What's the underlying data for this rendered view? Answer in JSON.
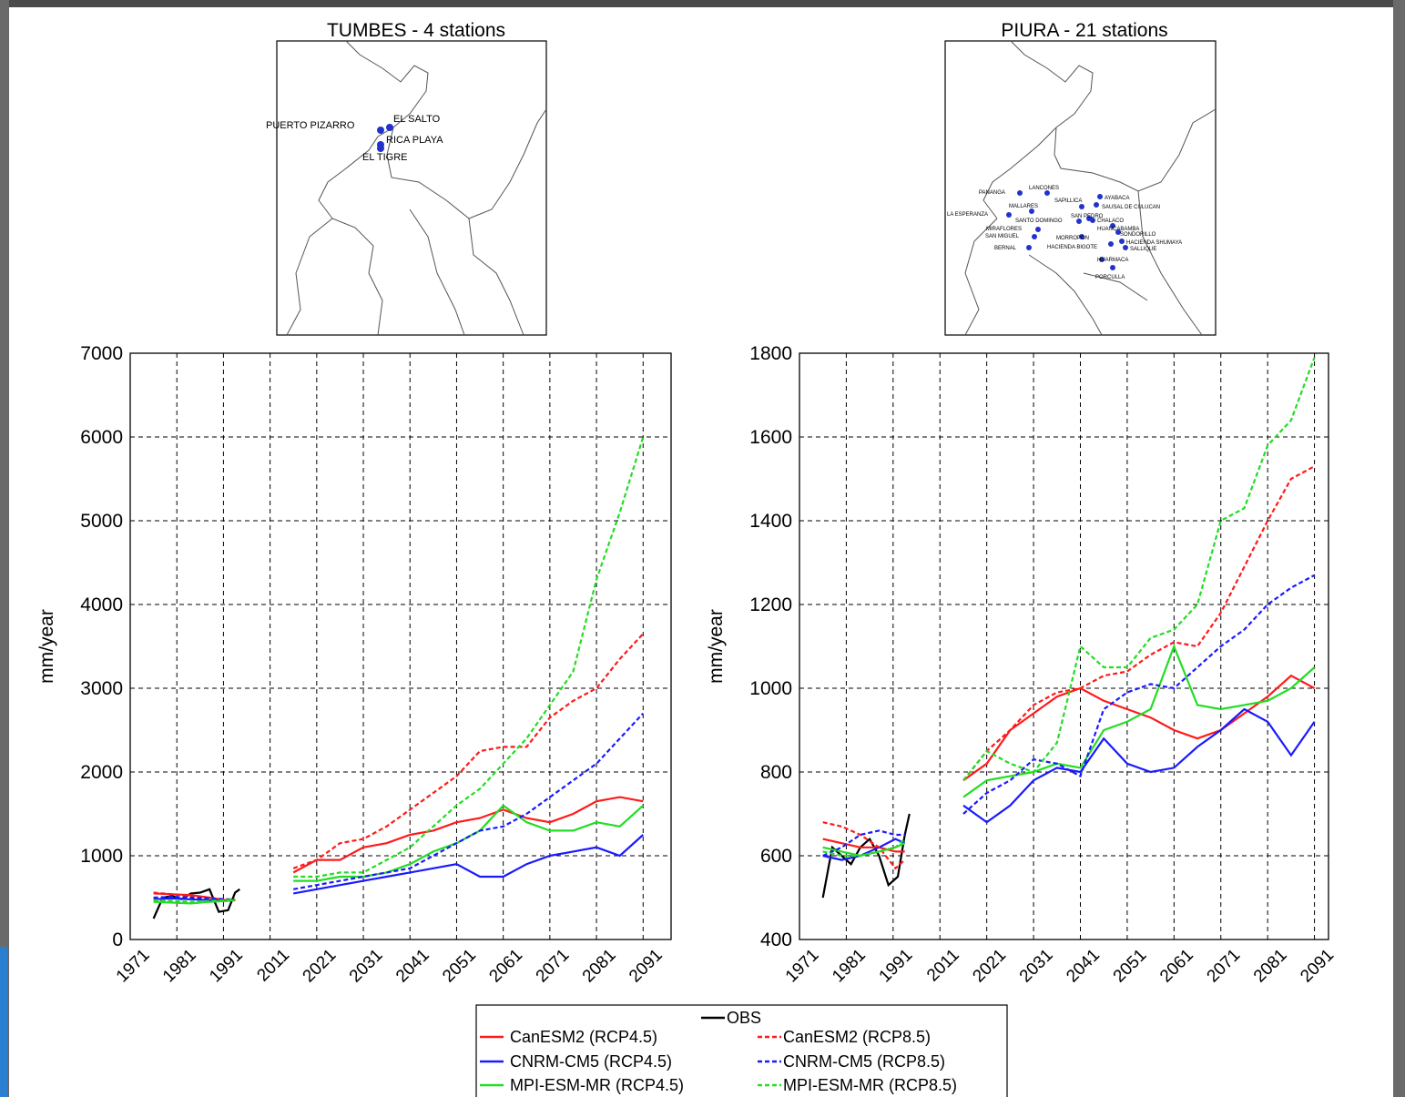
{
  "chart_data": [
    {
      "type": "line",
      "title": "TUMBES - 4 stations",
      "ylabel": "mm/year",
      "stations": [
        "PUERTO PIZARRO",
        "EL SALTO",
        "RICA PLAYA",
        "EL TIGRE"
      ],
      "xlim": [
        1971,
        2097
      ],
      "xticks": [
        1971,
        1981,
        1991,
        2011,
        2021,
        2031,
        2041,
        2051,
        2061,
        2071,
        2081,
        2091
      ],
      "ylim": [
        0,
        7000
      ],
      "yticks": [
        0,
        1000,
        2000,
        3000,
        4000,
        5000,
        6000,
        7000
      ],
      "grid": true,
      "x": [
        1976,
        1980,
        1984,
        1988,
        1992,
        1996,
        2006,
        2016,
        2021,
        2026,
        2031,
        2036,
        2041,
        2046,
        2051,
        2056,
        2061,
        2066,
        2071,
        2076,
        2081,
        2086,
        2091
      ],
      "series": [
        {
          "name": "OBS",
          "color": "#000000",
          "linestyle": "solid",
          "x": [
            1976,
            1978,
            1980,
            1982,
            1984,
            1986,
            1988,
            1990,
            1993,
            1996,
            1998
          ],
          "values": [
            250,
            500,
            520,
            480,
            550,
            560,
            600,
            330,
            350,
            560,
            600
          ]
        },
        {
          "name": "CanESM2 (RCP4.5)",
          "color": "#ff1a1a",
          "linestyle": "solid",
          "values": [
            550,
            540,
            530,
            500,
            470,
            470,
            null,
            800,
            950,
            950,
            1100,
            1150,
            1250,
            1300,
            1400,
            1450,
            1550,
            1450,
            1400,
            1500,
            1650,
            1700,
            1650
          ]
        },
        {
          "name": "CNRM-CM5 (RCP4.5)",
          "color": "#1a1aff",
          "linestyle": "solid",
          "values": [
            480,
            490,
            480,
            470,
            460,
            470,
            null,
            550,
            600,
            650,
            700,
            750,
            800,
            850,
            900,
            750,
            750,
            900,
            1000,
            1050,
            1100,
            1000,
            1250
          ]
        },
        {
          "name": "MPI-ESM-MR (RCP4.5)",
          "color": "#22dd22",
          "linestyle": "solid",
          "values": [
            450,
            440,
            430,
            450,
            460,
            470,
            null,
            700,
            700,
            750,
            750,
            800,
            900,
            1050,
            1150,
            1300,
            1600,
            1400,
            1300,
            1300,
            1400,
            1350,
            1600
          ]
        },
        {
          "name": "CanESM2 (RCP8.5)",
          "color": "#ff1a1a",
          "linestyle": "dashed",
          "values": [
            560,
            540,
            520,
            490,
            480,
            470,
            null,
            850,
            950,
            1150,
            1200,
            1350,
            1550,
            1750,
            1950,
            2250,
            2300,
            2300,
            2650,
            2850,
            3000,
            3350,
            3650
          ]
        },
        {
          "name": "CNRM-CM5 (RCP8.5)",
          "color": "#1a1aff",
          "linestyle": "dashed",
          "values": [
            500,
            510,
            500,
            490,
            480,
            480,
            null,
            600,
            650,
            700,
            750,
            800,
            850,
            1000,
            1150,
            1300,
            1350,
            1500,
            1700,
            1900,
            2100,
            2400,
            2700
          ]
        },
        {
          "name": "MPI-ESM-MR (RCP8.5)",
          "color": "#22dd22",
          "linestyle": "dashed",
          "values": [
            470,
            460,
            450,
            460,
            470,
            480,
            null,
            750,
            750,
            800,
            800,
            950,
            1100,
            1350,
            1600,
            1800,
            2100,
            2400,
            2800,
            3200,
            4300,
            5100,
            6000
          ]
        }
      ]
    },
    {
      "type": "line",
      "title": "PIURA - 21 stations",
      "ylabel": "mm/year",
      "stations": [
        "PANANGA",
        "LANCONES",
        "AYABACA",
        "SAPILLICA",
        "SAUSAL DE CULUCAN",
        "MALLARES",
        "LA ESPERANZA",
        "SAN PEDRO",
        "SANTO DOMINGO",
        "CHALACO",
        "HUANCABAMBA",
        "MIRAFLORES",
        "SONDORILLO",
        "SAN MIGUEL",
        "MORROPON",
        "HACIENDA SHUMAYA",
        "BERNAL",
        "HACIENDA BIGOTE",
        "SALLIQUE",
        "HUARMACA",
        "PORCULLA"
      ],
      "xlim": [
        1971,
        2094
      ],
      "xticks": [
        1971,
        1981,
        1991,
        2011,
        2021,
        2031,
        2041,
        2051,
        2061,
        2071,
        2081,
        2091
      ],
      "ylim": [
        400,
        1800
      ],
      "yticks": [
        400,
        600,
        800,
        1000,
        1200,
        1400,
        1600,
        1800
      ],
      "grid": true,
      "x": [
        1976,
        1980,
        1984,
        1988,
        1992,
        1996,
        2006,
        2016,
        2021,
        2026,
        2031,
        2036,
        2041,
        2046,
        2051,
        2056,
        2061,
        2066,
        2071,
        2076,
        2081,
        2086,
        2091
      ],
      "series": [
        {
          "name": "OBS",
          "color": "#000000",
          "linestyle": "solid",
          "x": [
            1976,
            1978,
            1980,
            1982,
            1984,
            1986,
            1988,
            1990,
            1993,
            1996,
            1998
          ],
          "values": [
            500,
            620,
            600,
            580,
            620,
            640,
            600,
            530,
            550,
            650,
            700
          ]
        },
        {
          "name": "CanESM2 (RCP4.5)",
          "color": "#ff1a1a",
          "linestyle": "solid",
          "values": [
            640,
            630,
            620,
            620,
            610,
            610,
            null,
            780,
            820,
            900,
            940,
            980,
            1000,
            970,
            950,
            930,
            900,
            880,
            900,
            940,
            980,
            1030,
            1000
          ]
        },
        {
          "name": "CNRM-CM5 (RCP4.5)",
          "color": "#1a1aff",
          "linestyle": "solid",
          "values": [
            600,
            590,
            600,
            620,
            640,
            630,
            null,
            720,
            680,
            720,
            780,
            810,
            800,
            880,
            820,
            800,
            810,
            860,
            900,
            950,
            920,
            840,
            920
          ]
        },
        {
          "name": "MPI-ESM-MR (RCP4.5)",
          "color": "#22dd22",
          "linestyle": "solid",
          "values": [
            620,
            610,
            600,
            610,
            620,
            630,
            null,
            740,
            780,
            790,
            800,
            820,
            810,
            900,
            920,
            950,
            1100,
            960,
            950,
            960,
            970,
            1000,
            1050
          ]
        },
        {
          "name": "CanESM2 (RCP8.5)",
          "color": "#ff1a1a",
          "linestyle": "dashed",
          "values": [
            680,
            670,
            650,
            620,
            570,
            590,
            null,
            780,
            850,
            900,
            960,
            990,
            1000,
            1030,
            1040,
            1080,
            1110,
            1100,
            1180,
            1290,
            1400,
            1500,
            1530
          ]
        },
        {
          "name": "CNRM-CM5 (RCP8.5)",
          "color": "#1a1aff",
          "linestyle": "dashed",
          "values": [
            600,
            620,
            650,
            660,
            650,
            650,
            null,
            700,
            750,
            780,
            830,
            820,
            790,
            950,
            990,
            1010,
            1000,
            1050,
            1100,
            1140,
            1200,
            1240,
            1270
          ]
        },
        {
          "name": "MPI-ESM-MR (RCP8.5)",
          "color": "#22dd22",
          "linestyle": "dashed",
          "values": [
            610,
            600,
            600,
            610,
            620,
            640,
            null,
            780,
            850,
            820,
            800,
            870,
            1100,
            1050,
            1050,
            1120,
            1140,
            1200,
            1400,
            1430,
            1580,
            1640,
            1790
          ]
        }
      ]
    }
  ]
}
